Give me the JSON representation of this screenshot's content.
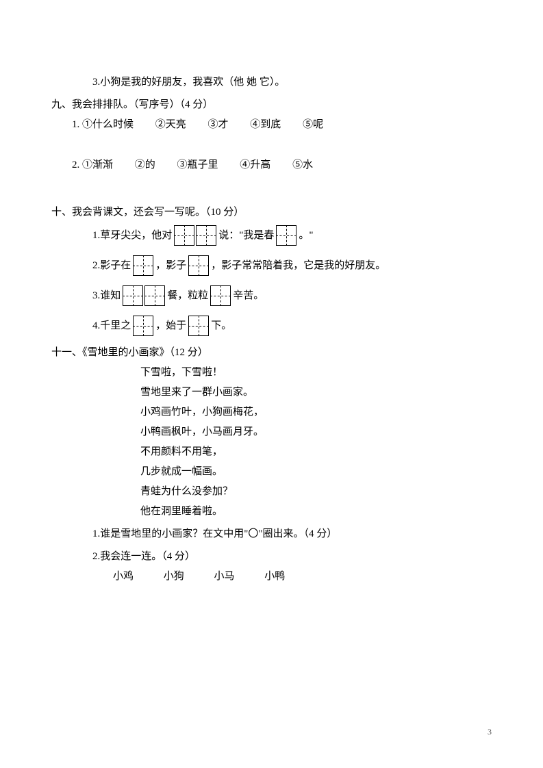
{
  "q8": {
    "item3": "3.小狗是我的好朋友，我喜欢（他 她 它）。"
  },
  "q9": {
    "heading": "九、我会排排队。（写序号）（4 分）",
    "row1": {
      "num": "1.",
      "opts": [
        "①什么时候",
        "②天亮",
        "③才",
        "④到底",
        "⑤呢"
      ]
    },
    "row2": {
      "num": "2.",
      "opts": [
        "①渐渐",
        "②的",
        "③瓶子里",
        "④升高",
        "⑤水"
      ]
    }
  },
  "q10": {
    "heading": "十、我会背课文，还会写一写呢。（10 分）",
    "r1": {
      "a": "1.草牙尖尖，他对",
      "b": "说：\"我是春",
      "c": "。\""
    },
    "r2": {
      "a": "2.影子在",
      "b": "，影子",
      "c": "，影子常常陪着我，它是我的好朋友。"
    },
    "r3": {
      "a": "3.谁知",
      "b": "餐，粒粒",
      "c": "辛苦。"
    },
    "r4": {
      "a": "4.千里之",
      "b": "，始于",
      "c": "下。"
    }
  },
  "q11": {
    "heading": "十一、《雪地里的小画家》（12 分）",
    "poem": [
      "下雪啦，下雪啦！",
      "雪地里来了一群小画家。",
      "小鸡画竹叶，小狗画梅花，",
      "小鸭画枫叶，小马画月牙。",
      "不用颜料不用笔，",
      "几步就成一幅画。",
      "青蛙为什么没参加？",
      "他在洞里睡着啦。"
    ],
    "sub1": "1.谁是雪地里的小画家？在文中用\"〇\"圈出来。（4 分）",
    "sub2": "2.我会连一连。（4 分）",
    "animals": [
      "小鸡",
      "小狗",
      "小马",
      "小鸭"
    ]
  },
  "pagenum": "3"
}
